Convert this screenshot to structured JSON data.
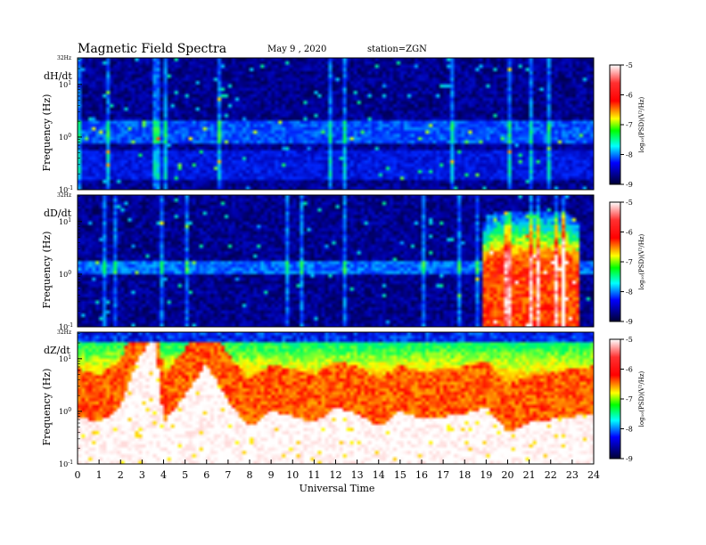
{
  "header": {
    "title": "Magnetic  Field  Spectra",
    "date": "May 9  , 2020",
    "station": "station=ZGN"
  },
  "panels": [
    {
      "component": "dH/dt",
      "top_label": "32Hz",
      "ylabel": "Frequency  (Hz)",
      "y_ticks": [
        {
          "exp": "1",
          "value": 10
        },
        {
          "exp": "0",
          "value": 1
        },
        {
          "exp": "-1",
          "value": 0.1
        }
      ]
    },
    {
      "component": "dD/dt",
      "top_label": "32Hz",
      "ylabel": "Frequency  (Hz)",
      "y_ticks": [
        {
          "exp": "1",
          "value": 10
        },
        {
          "exp": "0",
          "value": 1
        },
        {
          "exp": "-1",
          "value": 0.1
        }
      ]
    },
    {
      "component": "dZ/dt",
      "top_label": "32Hz",
      "ylabel": "Frequency  (Hz)",
      "y_ticks": [
        {
          "exp": "1",
          "value": 10
        },
        {
          "exp": "0",
          "value": 1
        },
        {
          "exp": "-1",
          "value": 0.1
        }
      ]
    }
  ],
  "colorbar": {
    "label": "log₁₀(PSD)(V²/Hz)",
    "ticks": [
      "-5",
      "-6",
      "-7",
      "-8",
      "-9"
    ]
  },
  "xaxis": {
    "label": "Universal  Time",
    "ticks": [
      "0",
      "1",
      "2",
      "3",
      "4",
      "5",
      "6",
      "7",
      "8",
      "9",
      "10",
      "11",
      "12",
      "13",
      "14",
      "15",
      "16",
      "17",
      "18",
      "19",
      "20",
      "21",
      "22",
      "23",
      "24"
    ]
  },
  "chart_data": {
    "type": "heatmap",
    "title": "Magnetic  Field  Spectra",
    "x": {
      "label": "Universal  Time",
      "range": [
        0,
        24
      ],
      "unit": "h"
    },
    "y": {
      "label": "Frequency  (Hz)",
      "range": [
        0.1,
        32
      ],
      "scale": "log"
    },
    "color": {
      "label": "log10(PSD)(V^2/Hz)",
      "range": [
        -9,
        -5
      ]
    },
    "colormap": [
      "#000033",
      "#0000ff",
      "#00ffff",
      "#00ff00",
      "#ffff00",
      "#ff0000",
      "#ffffff"
    ],
    "series": [
      {
        "name": "dH/dt",
        "background_level": -8.6,
        "bands": [
          {
            "f_min": 0.8,
            "f_max": 2.0,
            "level": -7.9
          },
          {
            "f_min": 0.15,
            "f_max": 0.6,
            "level": -8.2
          }
        ],
        "events": []
      },
      {
        "name": "dD/dt",
        "background_level": -8.6,
        "bands": [
          {
            "f_min": 1.0,
            "f_max": 1.8,
            "level": -7.8
          }
        ],
        "events": [
          {
            "t_start": 18.9,
            "t_end": 23.3,
            "f_max": 15,
            "level": -5.8
          },
          {
            "t_start": 19.9,
            "t_end": 20.1,
            "f_max": 15,
            "level": -5.2
          },
          {
            "t_start": 22.5,
            "t_end": 22.7,
            "f_max": 15,
            "level": -5.2
          }
        ]
      },
      {
        "name": "dZ/dt",
        "background_level": -5.0,
        "top_edge_level": -8.5,
        "cutoff_freq_hours": [
          {
            "t": 0,
            "f": 0.8
          },
          {
            "t": 1,
            "f": 0.6
          },
          {
            "t": 2,
            "f": 1.2
          },
          {
            "t": 2.8,
            "f": 10
          },
          {
            "t": 3.6,
            "f": 25
          },
          {
            "t": 4,
            "f": 0.6
          },
          {
            "t": 5,
            "f": 2
          },
          {
            "t": 6,
            "f": 8
          },
          {
            "t": 7,
            "f": 1.5
          },
          {
            "t": 8,
            "f": 0.5
          },
          {
            "t": 9,
            "f": 1.0
          },
          {
            "t": 10,
            "f": 0.8
          },
          {
            "t": 11,
            "f": 0.6
          },
          {
            "t": 12,
            "f": 1.2
          },
          {
            "t": 13,
            "f": 0.9
          },
          {
            "t": 14,
            "f": 0.5
          },
          {
            "t": 15,
            "f": 1.0
          },
          {
            "t": 16,
            "f": 0.7
          },
          {
            "t": 17,
            "f": 0.8
          },
          {
            "t": 18,
            "f": 0.9
          },
          {
            "t": 19,
            "f": 1.2
          },
          {
            "t": 20,
            "f": 0.4
          },
          {
            "t": 21,
            "f": 0.6
          },
          {
            "t": 22,
            "f": 0.7
          },
          {
            "t": 23,
            "f": 0.8
          },
          {
            "t": 24,
            "f": 0.9
          }
        ]
      }
    ]
  }
}
